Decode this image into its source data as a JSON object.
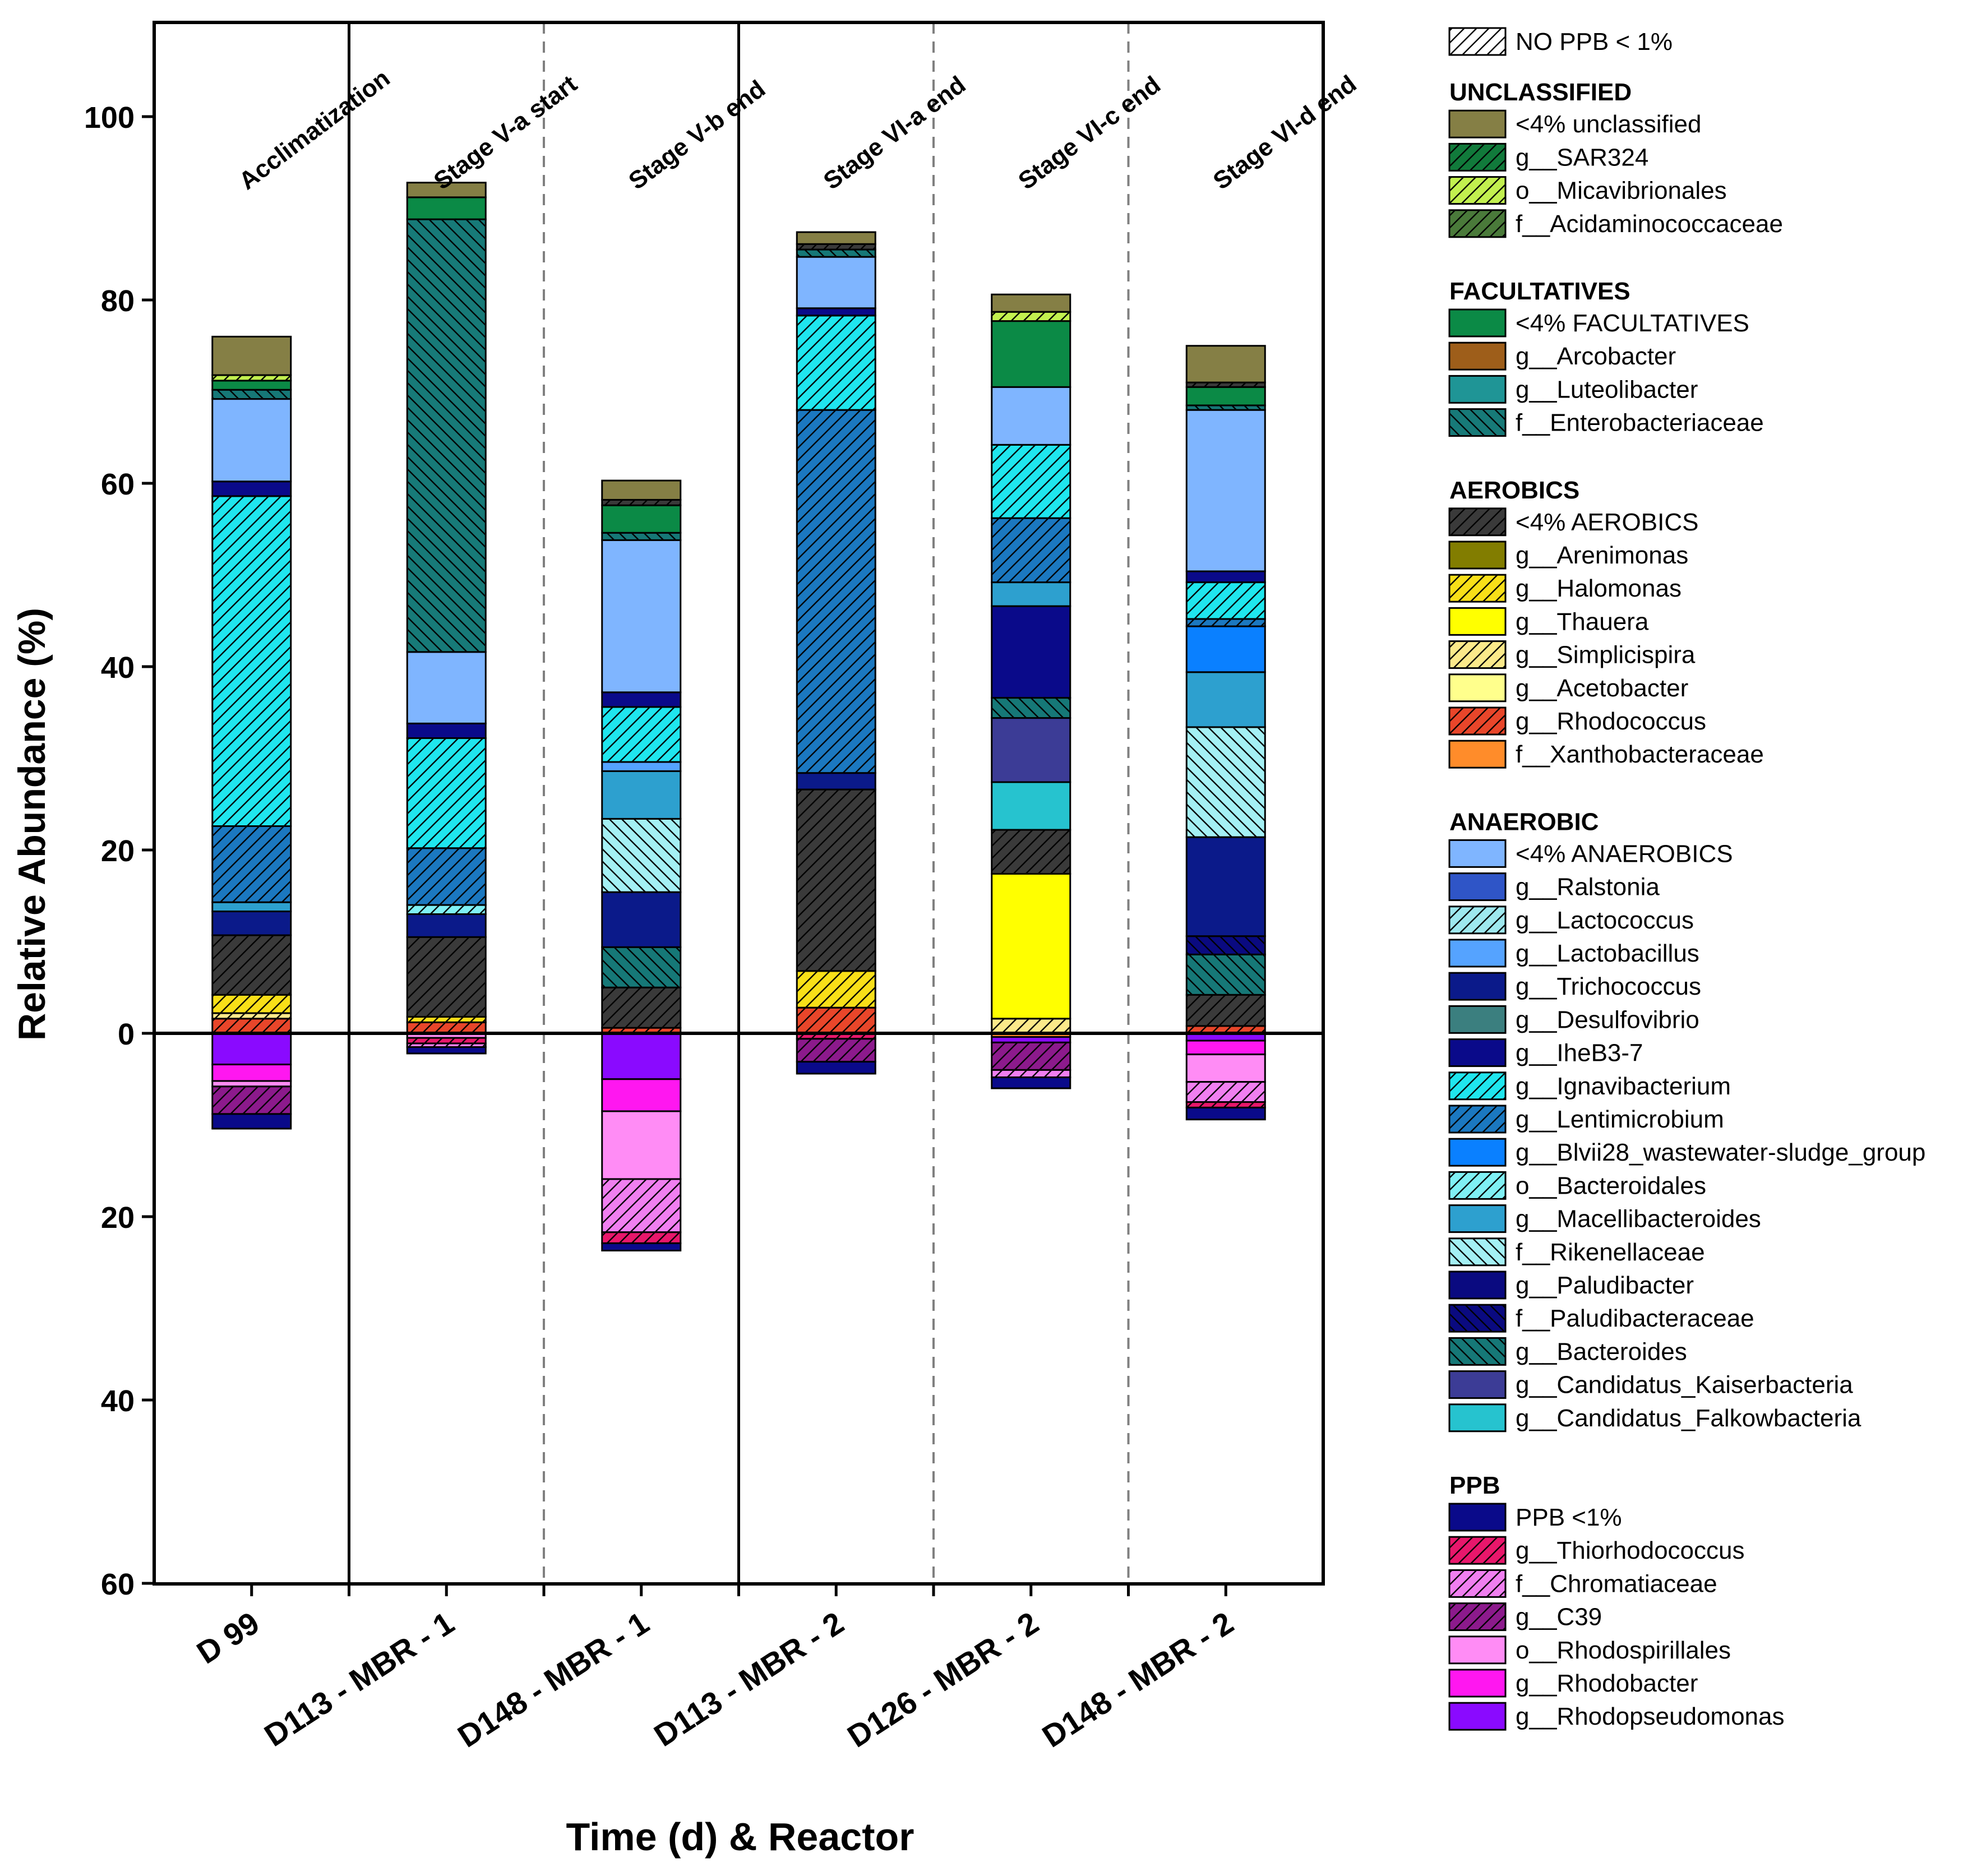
{
  "chart_data": {
    "type": "stacked-bar",
    "title": "",
    "xlabel": "Time (d) & Reactor",
    "ylabel": "Relative Abundance (%)",
    "ylim": [
      -60,
      110
    ],
    "yticks": [
      {
        "value": 100,
        "label": "100"
      },
      {
        "value": 80,
        "label": "80"
      },
      {
        "value": 60,
        "label": "60"
      },
      {
        "value": 40,
        "label": "40"
      },
      {
        "value": 20,
        "label": "20"
      },
      {
        "value": 0,
        "label": "0"
      },
      {
        "value": -20,
        "label": "20"
      },
      {
        "value": -40,
        "label": "40"
      },
      {
        "value": -60,
        "label": "60"
      }
    ],
    "categories": [
      "D 99",
      "D113 - MBR - 1",
      "D148 - MBR - 1",
      "D113 - MBR - 2",
      "D126 - MBR - 2",
      "D148 - MBR - 2"
    ],
    "stages": [
      "Acclimatization",
      "Stage V-a start",
      "Stage V-b end",
      "Stage VI-a end",
      "Stage VI-c end",
      "Stage VI-d end"
    ],
    "separators": [
      {
        "after": 0,
        "style": "solid"
      },
      {
        "after": 1,
        "style": "dashed"
      },
      {
        "after": 2,
        "style": "solid"
      },
      {
        "after": 3,
        "style": "dashed"
      },
      {
        "after": 4,
        "style": "dashed"
      }
    ],
    "legend_position": "right",
    "legend_groups": [
      {
        "title": "",
        "items": [
          "NO PPB < 1%"
        ]
      },
      {
        "title": "UNCLASSIFIED",
        "items": [
          "<4% unclassified",
          "g__SAR324",
          "o__Micavibrionales",
          "f__Acidaminococcaceae"
        ]
      },
      {
        "title": "FACULTATIVES",
        "items": [
          "<4% FACULTATIVES",
          "g__Arcobacter",
          "g__Luteolibacter",
          "f__Enterobacteriaceae"
        ]
      },
      {
        "title": "AEROBICS",
        "items": [
          "<4% AEROBICS",
          "g__Arenimonas",
          "g__Halomonas",
          "g__Thauera",
          "g__Simplicispira",
          "g__Acetobacter",
          "g__Rhodococcus",
          "f__Xanthobacteraceae"
        ]
      },
      {
        "title": "ANAEROBIC",
        "items": [
          "<4% ANAEROBICS",
          "g__Ralstonia",
          "g__Lactococcus",
          "g__Lactobacillus",
          "g__Trichococcus",
          "g__Desulfovibrio",
          "g__IheB3-7",
          "g__Ignavibacterium",
          "g__Lentimicrobium",
          "g__Blvii28_wastewater-sludge_group",
          "o__Bacteroidales",
          "g__Macellibacteroides",
          "f__Rikenellaceae",
          "g__Paludibacter",
          "f__Paludibacteraceae",
          "g__Bacteroides",
          "g__Candidatus_Kaiserbacteria",
          "g__Candidatus_Falkowbacteria"
        ]
      },
      {
        "title": "PPB",
        "items": [
          "PPB <1%",
          "g__Thiorhodococcus",
          "f__Chromatiaceae",
          "g__C39",
          "o__Rhodospirillales",
          "g__Rhodobacter",
          "g__Rhodopseudomonas"
        ]
      }
    ],
    "styles": {
      "NO PPB < 1%": {
        "color": "#ffffff",
        "hatch": "fwd"
      },
      "<4% unclassified": {
        "color": "#857f45",
        "hatch": "none"
      },
      "g__SAR324": {
        "color": "#117a3b",
        "hatch": "fwd"
      },
      "o__Micavibrionales": {
        "color": "#c2f04f",
        "hatch": "fwd"
      },
      "f__Acidaminococcaceae": {
        "color": "#4a7a3a",
        "hatch": "fwd"
      },
      "<4% FACULTATIVES": {
        "color": "#0b8a46",
        "hatch": "none"
      },
      "g__Arcobacter": {
        "color": "#9e5e1a",
        "hatch": "none"
      },
      "g__Luteolibacter": {
        "color": "#1f9596",
        "hatch": "none"
      },
      "f__Enterobacteriaceae": {
        "color": "#177a78",
        "hatch": "back"
      },
      "<4% AEROBICS": {
        "color": "#3a3a3a",
        "hatch": "fwd"
      },
      "g__Arenimonas": {
        "color": "#827d00",
        "hatch": "none"
      },
      "g__Halomonas": {
        "color": "#f8df18",
        "hatch": "fwd"
      },
      "g__Thauera": {
        "color": "#ffff00",
        "hatch": "none"
      },
      "g__Simplicispira": {
        "color": "#fbe98a",
        "hatch": "fwd"
      },
      "g__Acetobacter": {
        "color": "#ffff8c",
        "hatch": "none"
      },
      "g__Rhodococcus": {
        "color": "#e8462a",
        "hatch": "fwd"
      },
      "f__Xanthobacteraceae": {
        "color": "#ff8c2a",
        "hatch": "none"
      },
      "<4% ANAEROBICS": {
        "color": "#7fb5ff",
        "hatch": "none"
      },
      "g__Ralstonia": {
        "color": "#2f55c7",
        "hatch": "none"
      },
      "g__Lactococcus": {
        "color": "#9ee8ee",
        "hatch": "fwd"
      },
      "g__Lactobacillus": {
        "color": "#55a3ff",
        "hatch": "none"
      },
      "g__Trichococcus": {
        "color": "#0b1a8a",
        "hatch": "none"
      },
      "g__Desulfovibrio": {
        "color": "#3b7f7f",
        "hatch": "none"
      },
      "g__IheB3-7": {
        "color": "#0a0a8a",
        "hatch": "none"
      },
      "g__Ignavibacterium": {
        "color": "#1fe6ee",
        "hatch": "fwd"
      },
      "g__Lentimicrobium": {
        "color": "#1b78c0",
        "hatch": "fwd"
      },
      "g__Blvii28_wastewater-sludge_group": {
        "color": "#0a80ff",
        "hatch": "none"
      },
      "o__Bacteroidales": {
        "color": "#7ff0f4",
        "hatch": "fwd"
      },
      "g__Macellibacteroides": {
        "color": "#2da0cf",
        "hatch": "none"
      },
      "f__Rikenellaceae": {
        "color": "#a4f0f4",
        "hatch": "back"
      },
      "g__Paludibacter": {
        "color": "#0a0a80",
        "hatch": "none"
      },
      "f__Paludibacteraceae": {
        "color": "#0a0a80",
        "hatch": "back"
      },
      "g__Bacteroides": {
        "color": "#167877",
        "hatch": "back"
      },
      "g__Candidatus_Kaiserbacteria": {
        "color": "#3c3c96",
        "hatch": "none"
      },
      "g__Candidatus_Falkowbacteria": {
        "color": "#26c3cf",
        "hatch": "none"
      },
      "PPB <1%": {
        "color": "#0a0a8a",
        "hatch": "none"
      },
      "g__Thiorhodococcus": {
        "color": "#e8176b",
        "hatch": "fwd"
      },
      "f__Chromatiaceae": {
        "color": "#f07ff0",
        "hatch": "fwd"
      },
      "g__C39": {
        "color": "#8c1a8c",
        "hatch": "fwd"
      },
      "o__Rhodospirillales": {
        "color": "#ff8cf5",
        "hatch": "none"
      },
      "g__Rhodobacter": {
        "color": "#ff17f0",
        "hatch": "none"
      },
      "g__Rhodopseudomonas": {
        "color": "#8a0aff",
        "hatch": "none"
      }
    },
    "series_values": [
      {
        "category": "D 99",
        "positive": [
          {
            "name": "g__Rhodococcus",
            "value": 1.6
          },
          {
            "name": "g__Simplicispira",
            "value": 0.6
          },
          {
            "name": "g__Halomonas",
            "value": 2.0
          },
          {
            "name": "<4% AEROBICS",
            "value": 6.5
          },
          {
            "name": "g__Trichococcus",
            "value": 2.6
          },
          {
            "name": "g__Macellibacteroides",
            "value": 1.0
          },
          {
            "name": "g__Lentimicrobium",
            "value": 8.3
          },
          {
            "name": "g__Ignavibacterium",
            "value": 36.0
          },
          {
            "name": "g__IheB3-7",
            "value": 1.6
          },
          {
            "name": "<4% ANAEROBICS",
            "value": 9.0
          },
          {
            "name": "g__Bacteroides",
            "value": 1.0
          },
          {
            "name": "<4% FACULTATIVES",
            "value": 1.0
          },
          {
            "name": "o__Micavibrionales",
            "value": 0.6
          },
          {
            "name": "<4% unclassified",
            "value": 4.2
          }
        ],
        "negative": [
          {
            "name": "g__Rhodopseudomonas",
            "value": 3.4
          },
          {
            "name": "g__Rhodobacter",
            "value": 1.8
          },
          {
            "name": "o__Rhodospirillales",
            "value": 0.6
          },
          {
            "name": "g__C39",
            "value": 3.0
          },
          {
            "name": "PPB <1%",
            "value": 1.6
          }
        ]
      },
      {
        "category": "D113 - MBR - 1",
        "positive": [
          {
            "name": "g__Rhodococcus",
            "value": 1.2
          },
          {
            "name": "g__Halomonas",
            "value": 0.6
          },
          {
            "name": "<4% AEROBICS",
            "value": 8.7
          },
          {
            "name": "g__Trichococcus",
            "value": 2.5
          },
          {
            "name": "o__Bacteroidales",
            "value": 1.0
          },
          {
            "name": "g__Lentimicrobium",
            "value": 6.2
          },
          {
            "name": "g__Ignavibacterium",
            "value": 12.0
          },
          {
            "name": "g__IheB3-7",
            "value": 1.6
          },
          {
            "name": "<4% ANAEROBICS",
            "value": 7.8
          },
          {
            "name": "f__Enterobacteriaceae",
            "value": 47.2
          },
          {
            "name": "<4% FACULTATIVES",
            "value": 2.4
          },
          {
            "name": "<4% unclassified",
            "value": 1.6
          }
        ],
        "negative": [
          {
            "name": "o__Rhodospirillales",
            "value": 0.5
          },
          {
            "name": "g__Thiorhodococcus",
            "value": 0.6
          },
          {
            "name": "f__Chromatiaceae",
            "value": 0.4
          },
          {
            "name": "PPB <1%",
            "value": 0.7
          }
        ]
      },
      {
        "category": "D148 - MBR - 1",
        "positive": [
          {
            "name": "g__Rhodococcus",
            "value": 0.6
          },
          {
            "name": "<4% AEROBICS",
            "value": 4.4
          },
          {
            "name": "g__Bacteroides",
            "value": 4.4
          },
          {
            "name": "g__Trichococcus",
            "value": 6.0
          },
          {
            "name": "f__Rikenellaceae",
            "value": 8.0
          },
          {
            "name": "g__Macellibacteroides",
            "value": 5.2
          },
          {
            "name": "g__Lactobacillus",
            "value": 1.0
          },
          {
            "name": "g__Ignavibacterium",
            "value": 6.0
          },
          {
            "name": "g__IheB3-7",
            "value": 1.6
          },
          {
            "name": "<4% ANAEROBICS",
            "value": 16.6
          },
          {
            "name": "g__Bacteroides",
            "value": 0.8
          },
          {
            "name": "<4% FACULTATIVES",
            "value": 3.0
          },
          {
            "name": "<4% AEROBICS",
            "value": 0.6
          },
          {
            "name": "<4% unclassified",
            "value": 2.1
          }
        ],
        "negative": [
          {
            "name": "g__Rhodopseudomonas",
            "value": 5.0
          },
          {
            "name": "g__Rhodobacter",
            "value": 3.5
          },
          {
            "name": "o__Rhodospirillales",
            "value": 7.4
          },
          {
            "name": "f__Chromatiaceae",
            "value": 5.8
          },
          {
            "name": "g__Thiorhodococcus",
            "value": 1.2
          },
          {
            "name": "PPB <1%",
            "value": 0.8
          }
        ]
      },
      {
        "category": "D113 - MBR - 2",
        "positive": [
          {
            "name": "g__Rhodococcus",
            "value": 2.8
          },
          {
            "name": "g__Halomonas",
            "value": 4.0
          },
          {
            "name": "<4% AEROBICS",
            "value": 19.8
          },
          {
            "name": "g__Trichococcus",
            "value": 1.8
          },
          {
            "name": "g__Lentimicrobium",
            "value": 39.6
          },
          {
            "name": "g__Ignavibacterium",
            "value": 10.3
          },
          {
            "name": "g__IheB3-7",
            "value": 0.8
          },
          {
            "name": "<4% ANAEROBICS",
            "value": 5.6
          },
          {
            "name": "g__Bacteroides",
            "value": 0.8
          },
          {
            "name": "<4% AEROBICS",
            "value": 0.6
          },
          {
            "name": "<4% unclassified",
            "value": 1.3
          }
        ],
        "negative": [
          {
            "name": "g__Thiorhodococcus",
            "value": 0.6
          },
          {
            "name": "g__C39",
            "value": 2.5
          },
          {
            "name": "PPB <1%",
            "value": 1.3
          }
        ]
      },
      {
        "category": "D126 - MBR - 2",
        "positive": [
          {
            "name": "g__Simplicispira",
            "value": 1.6
          },
          {
            "name": "g__Thauera",
            "value": 15.8
          },
          {
            "name": "<4% AEROBICS",
            "value": 4.8
          },
          {
            "name": "g__Candidatus_Falkowbacteria",
            "value": 5.2
          },
          {
            "name": "g__Candidatus_Kaiserbacteria",
            "value": 7.0
          },
          {
            "name": "g__Bacteroides",
            "value": 2.2
          },
          {
            "name": "g__IheB3-7",
            "value": 10.0
          },
          {
            "name": "g__Macellibacteroides",
            "value": 2.6
          },
          {
            "name": "g__Lentimicrobium",
            "value": 7.0
          },
          {
            "name": "g__Ignavibacterium",
            "value": 8.0
          },
          {
            "name": "<4% ANAEROBICS",
            "value": 6.3
          },
          {
            "name": "<4% FACULTATIVES",
            "value": 7.2
          },
          {
            "name": "o__Micavibrionales",
            "value": 1.0
          },
          {
            "name": "<4% unclassified",
            "value": 1.9
          }
        ],
        "negative": [
          {
            "name": "f__Xanthobacteraceae",
            "value": 0.4
          },
          {
            "name": "g__Rhodopseudomonas",
            "value": 0.6
          },
          {
            "name": "g__C39",
            "value": 3.0
          },
          {
            "name": "f__Chromatiaceae",
            "value": 0.8
          },
          {
            "name": "PPB <1%",
            "value": 1.2
          }
        ]
      },
      {
        "category": "D148 - MBR - 2",
        "positive": [
          {
            "name": "g__Rhodococcus",
            "value": 0.8
          },
          {
            "name": "<4% AEROBICS",
            "value": 3.4
          },
          {
            "name": "g__Bacteroides",
            "value": 4.4
          },
          {
            "name": "f__Paludibacteraceae",
            "value": 2.0
          },
          {
            "name": "g__Trichococcus",
            "value": 10.8
          },
          {
            "name": "f__Rikenellaceae",
            "value": 12.0
          },
          {
            "name": "g__Macellibacteroides",
            "value": 6.0
          },
          {
            "name": "g__Blvii28_wastewater-sludge_group",
            "value": 5.0
          },
          {
            "name": "g__Lentimicrobium",
            "value": 0.8
          },
          {
            "name": "g__Ignavibacterium",
            "value": 4.0
          },
          {
            "name": "g__IheB3-7",
            "value": 1.2
          },
          {
            "name": "<4% ANAEROBICS",
            "value": 17.6
          },
          {
            "name": "g__Bacteroides",
            "value": 0.5
          },
          {
            "name": "<4% FACULTATIVES",
            "value": 2.0
          },
          {
            "name": "<4% AEROBICS",
            "value": 0.5
          },
          {
            "name": "<4% unclassified",
            "value": 4.0
          }
        ],
        "negative": [
          {
            "name": "g__Rhodopseudomonas",
            "value": 0.8
          },
          {
            "name": "g__Rhodobacter",
            "value": 1.5
          },
          {
            "name": "o__Rhodospirillales",
            "value": 3.0
          },
          {
            "name": "f__Chromatiaceae",
            "value": 2.2
          },
          {
            "name": "g__Thiorhodococcus",
            "value": 0.6
          },
          {
            "name": "PPB <1%",
            "value": 1.3
          }
        ]
      }
    ]
  }
}
